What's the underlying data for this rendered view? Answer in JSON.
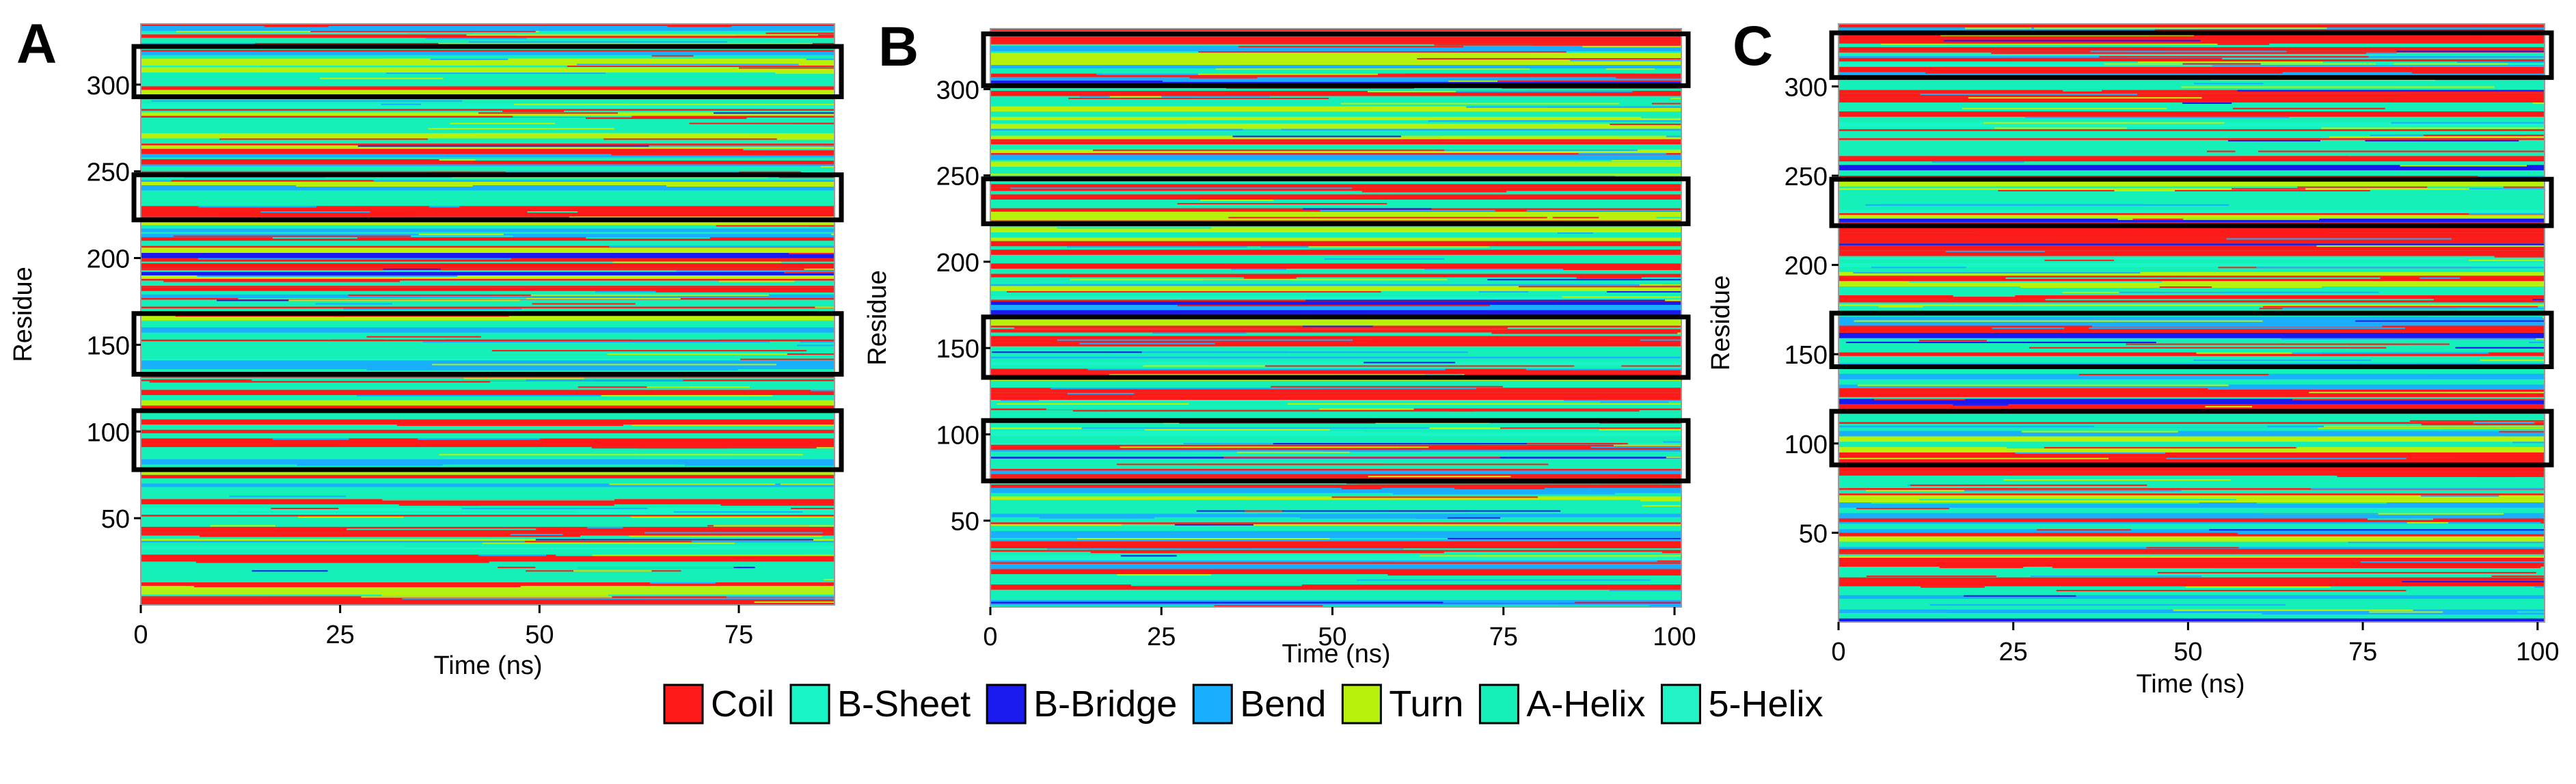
{
  "figure": {
    "colors": {
      "Coil": "#ff1a1a",
      "B-Sheet": "#19f5c6",
      "B-Bridge": "#1a1aee",
      "Bend": "#1aaeff",
      "Turn": "#b8f20c",
      "A-Helix": "#14f0b8",
      "5-Helix": "#22f2c4",
      "frame": "#000000"
    },
    "legend": {
      "items": [
        {
          "label": "Coil",
          "color": "#ff1a1a"
        },
        {
          "label": "B-Sheet",
          "color": "#19f5c6"
        },
        {
          "label": "B-Bridge",
          "color": "#1a1aee"
        },
        {
          "label": "Bend",
          "color": "#1aaeff"
        },
        {
          "label": "Turn",
          "color": "#b8f20c"
        },
        {
          "label": "A-Helix",
          "color": "#14f0b8"
        },
        {
          "label": "5-Helix",
          "color": "#22f2c4"
        }
      ]
    }
  },
  "chart_data": [
    {
      "type": "heatmap",
      "panel": "A",
      "xlabel": "Time (ns)",
      "ylabel": "Residue",
      "xlim": [
        0,
        87
      ],
      "ylim": [
        0,
        335
      ],
      "xticks": [
        0,
        25,
        50,
        75
      ],
      "yticks": [
        50,
        100,
        150,
        200,
        250,
        300
      ],
      "states": [
        "Coil",
        "B-Sheet",
        "B-Bridge",
        "Bend",
        "Turn",
        "A-Helix",
        "5-Helix"
      ],
      "highlight_boxes": [
        [
          78,
          112
        ],
        [
          133,
          168
        ],
        [
          222,
          248
        ],
        [
          293,
          322
        ]
      ],
      "seed": 11
    },
    {
      "type": "heatmap",
      "panel": "B",
      "xlabel": "Time (ns)",
      "ylabel": "Residue",
      "xlim": [
        0,
        101
      ],
      "ylim": [
        0,
        335
      ],
      "xticks": [
        0,
        25,
        50,
        75,
        100
      ],
      "yticks": [
        50,
        100,
        150,
        200,
        250,
        300
      ],
      "states": [
        "Coil",
        "B-Sheet",
        "B-Bridge",
        "Bend",
        "Turn",
        "A-Helix",
        "5-Helix"
      ],
      "highlight_boxes": [
        [
          73,
          108
        ],
        [
          133,
          168
        ],
        [
          222,
          248
        ],
        [
          302,
          332
        ]
      ],
      "seed": 23
    },
    {
      "type": "heatmap",
      "panel": "C",
      "xlabel": "Time (ns)",
      "ylabel": "Residue",
      "xlim": [
        0,
        101
      ],
      "ylim": [
        0,
        335
      ],
      "xticks": [
        0,
        25,
        50,
        75,
        100
      ],
      "yticks": [
        50,
        100,
        150,
        200,
        250,
        300
      ],
      "states": [
        "Coil",
        "B-Sheet",
        "B-Bridge",
        "Bend",
        "Turn",
        "A-Helix",
        "5-Helix"
      ],
      "highlight_boxes": [
        [
          88,
          118
        ],
        [
          143,
          173
        ],
        [
          222,
          248
        ],
        [
          305,
          330
        ]
      ],
      "seed": 37
    }
  ]
}
